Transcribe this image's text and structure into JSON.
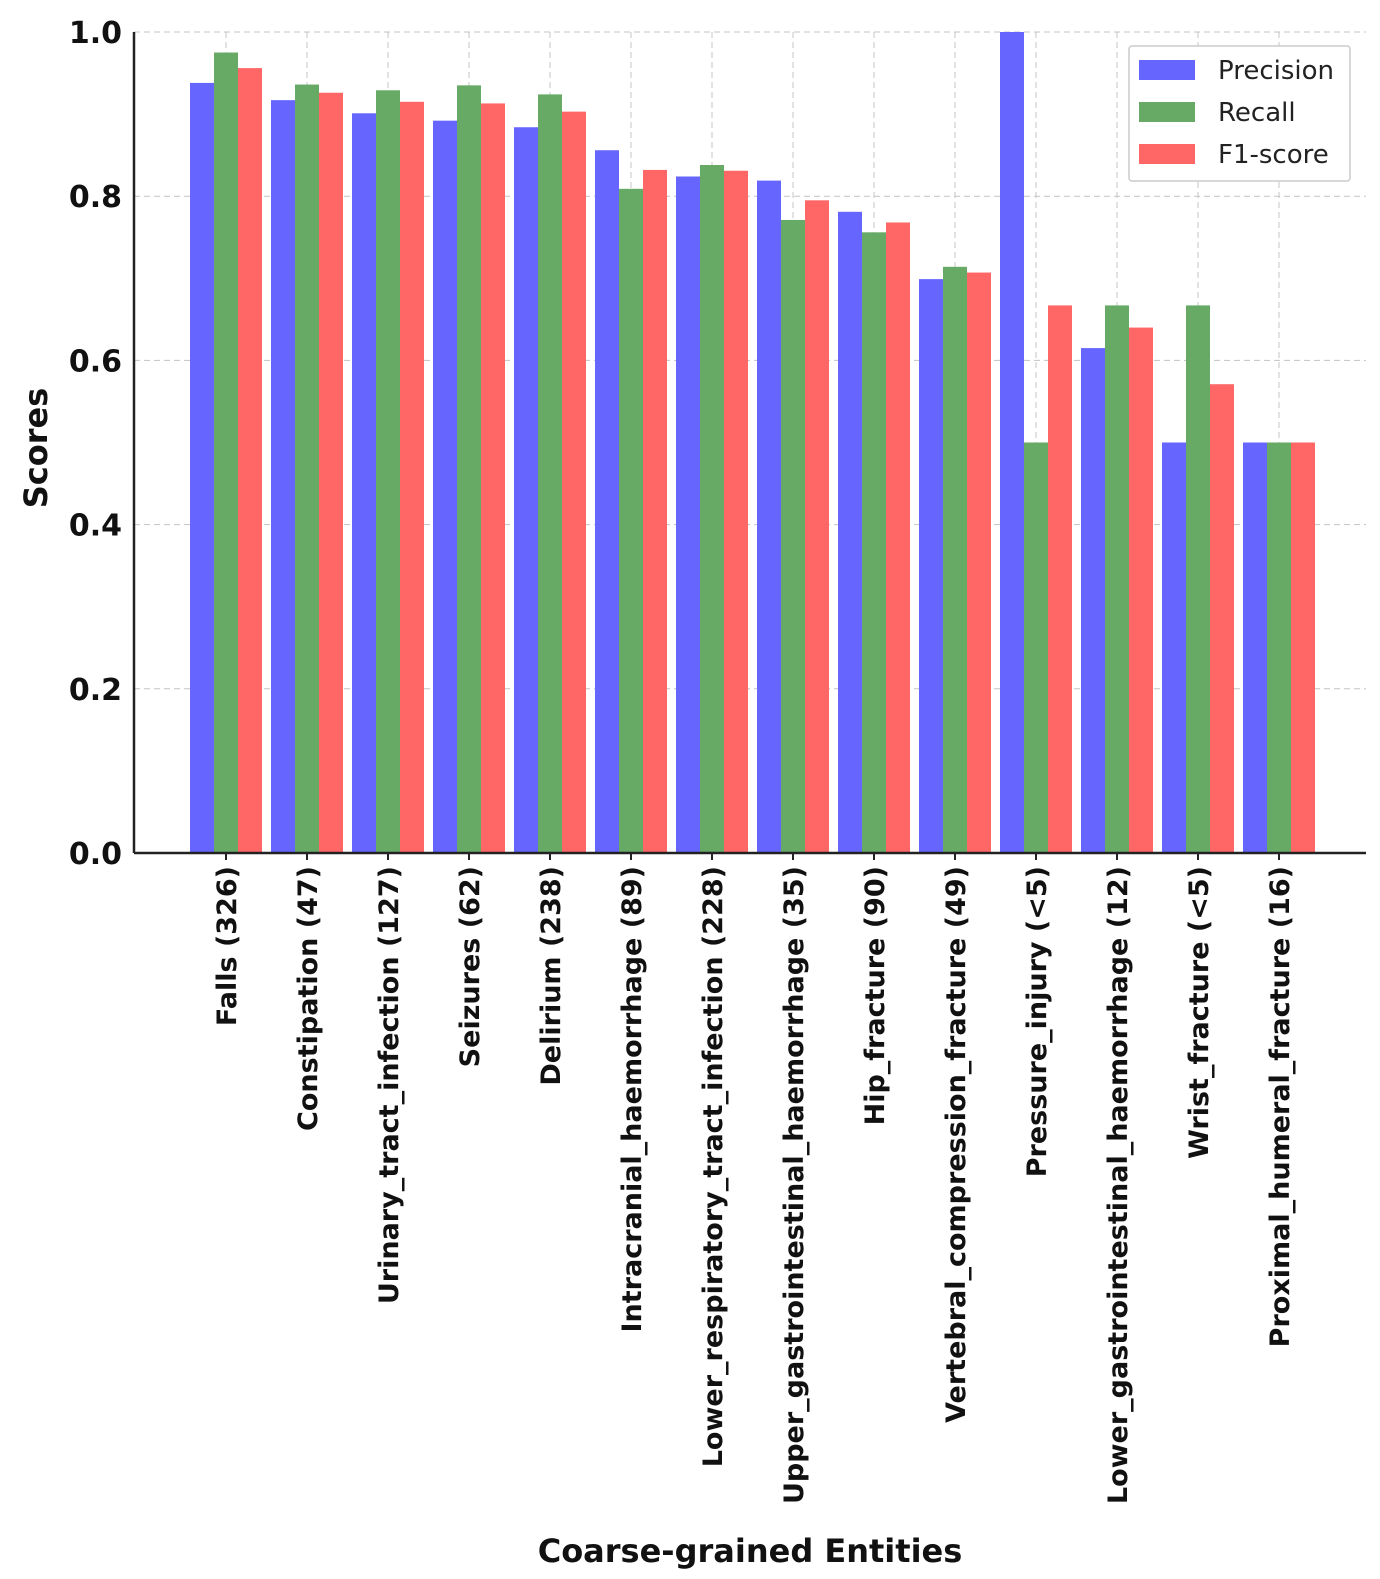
{
  "chart_data": {
    "type": "bar",
    "title": "",
    "xlabel": "Coarse-grained Entities",
    "ylabel": "Scores",
    "ylim": [
      0,
      1.0
    ],
    "yticks": [
      "0.0",
      "0.2",
      "0.4",
      "0.6",
      "0.8",
      "1.0"
    ],
    "ytick_values": [
      0.0,
      0.2,
      0.4,
      0.6,
      0.8,
      1.0
    ],
    "grid": true,
    "legend_position": "top-right",
    "categories": [
      "Falls (326)",
      "Constipation (47)",
      "Urinary_tract_infection (127)",
      "Seizures (62)",
      "Delirium (238)",
      "Intracranial_haemorrhage (89)",
      "Lower_respiratory_tract_infection (228)",
      "Upper_gastrointestinal_haemorrhage (35)",
      "Hip_fracture (90)",
      "Vertebral_compression_fracture (49)",
      "Pressure_injury (<5)",
      "Lower_gastrointestinal_haemorrhage (12)",
      "Wrist_fracture (<5)",
      "Proximal_humeral_fracture (16)"
    ],
    "series": [
      {
        "name": "Precision",
        "color": "#6666ff",
        "values": [
          0.938,
          0.917,
          0.901,
          0.892,
          0.884,
          0.856,
          0.824,
          0.819,
          0.781,
          0.699,
          1.0,
          0.615,
          0.5,
          0.5
        ]
      },
      {
        "name": "Recall",
        "color": "#66aa66",
        "values": [
          0.975,
          0.936,
          0.929,
          0.935,
          0.924,
          0.809,
          0.838,
          0.771,
          0.756,
          0.714,
          0.5,
          0.667,
          0.667,
          0.5
        ]
      },
      {
        "name": "F1-score",
        "color": "#ff6666",
        "values": [
          0.956,
          0.926,
          0.915,
          0.913,
          0.903,
          0.832,
          0.831,
          0.795,
          0.768,
          0.707,
          0.667,
          0.64,
          0.571,
          0.5
        ]
      }
    ]
  }
}
